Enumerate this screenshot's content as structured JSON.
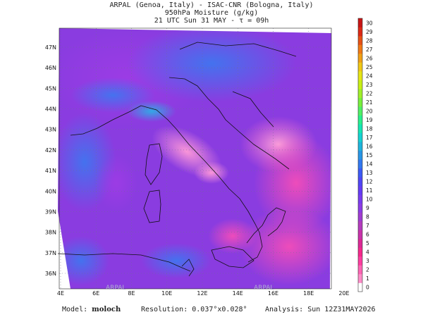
{
  "header": {
    "line1": "ARPAL (Genoa, Italy)  -  ISAC-CNR (Bologna, Italy)",
    "line2": "950hPa Moisture (g/kg)",
    "line3": "21 UTC Sun 31 MAY  -  τ = 09h"
  },
  "map": {
    "lon_ticks": [
      "4E",
      "6E",
      "8E",
      "10E",
      "12E",
      "14E",
      "16E",
      "18E",
      "20E"
    ],
    "lat_ticks": [
      "36N",
      "37N",
      "38N",
      "39N",
      "40N",
      "41N",
      "42N",
      "43N",
      "44N",
      "45N",
      "46N",
      "47N"
    ],
    "watermark": "ARPAL"
  },
  "colorbar": {
    "min": 0,
    "max": 30,
    "labels": [
      "0",
      "1",
      "2",
      "3",
      "4",
      "5",
      "6",
      "7",
      "8",
      "9",
      "10",
      "11",
      "12",
      "13",
      "14",
      "15",
      "16",
      "17",
      "18",
      "19",
      "20",
      "21",
      "22",
      "23",
      "24",
      "25",
      "26",
      "27",
      "28",
      "29",
      "30"
    ],
    "colors": [
      "#ffffff",
      "#ff8cc8",
      "#ff64b4",
      "#ff3ca0",
      "#f5288c",
      "#dc2896",
      "#c832aa",
      "#b43cbe",
      "#a03cd2",
      "#8c3ce6",
      "#783cf0",
      "#643cf5",
      "#5046f5",
      "#3c5af5",
      "#3278f0",
      "#2896e6",
      "#1eb4dc",
      "#14d2d2",
      "#14e6b4",
      "#28f08c",
      "#50f064",
      "#78f03c",
      "#a0f028",
      "#c8f014",
      "#e6e614",
      "#f0c814",
      "#f0a014",
      "#f07814",
      "#e65014",
      "#dc2814",
      "#c81414"
    ]
  },
  "footer": {
    "model_label": "Model:",
    "model_name": "moloch",
    "resolution_label": "Resolution:",
    "resolution_value": "0.037°x0.028°",
    "analysis_label": "Analysis:",
    "analysis_value": "Sun 12Z31MAY2026"
  }
}
